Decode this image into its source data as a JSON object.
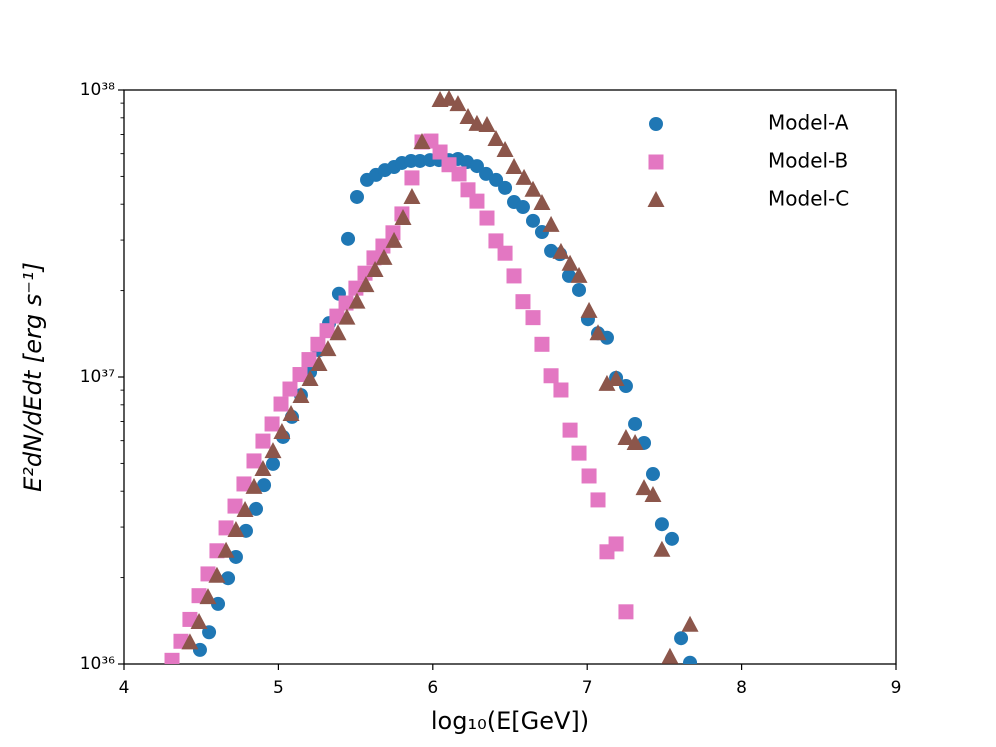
{
  "chart_data": {
    "type": "scatter",
    "xlabel": "log₁₀(E[GeV])",
    "ylabel": "E²dN/dEdt [erg s⁻¹]",
    "xlim": [
      4,
      9
    ],
    "xticks": [
      4,
      5,
      6,
      7,
      8,
      9
    ],
    "ylim": [
      1e+36,
      1e+38
    ],
    "log_y": true,
    "yticks": [
      {
        "value": 1e+36,
        "label": "10³⁶"
      },
      {
        "value": 1e+37,
        "label": "10³⁷"
      },
      {
        "value": 1e+38,
        "label": "10³⁸"
      }
    ],
    "yticks_minor": [
      2e+36,
      3e+36,
      4e+36,
      5e+36,
      6e+36,
      7e+36,
      8e+36,
      9e+36,
      2e+37,
      3e+37,
      4e+37,
      5e+37,
      6e+37,
      7e+37,
      8e+37,
      9e+37
    ],
    "legend": "upper right",
    "grid": false,
    "series": [
      {
        "name": "Model-A",
        "color": "#1f77b4",
        "marker": "circle",
        "x": [
          4.492,
          4.551,
          4.609,
          4.674,
          4.725,
          4.79,
          4.855,
          4.907,
          4.965,
          5.03,
          5.088,
          5.146,
          5.205,
          5.263,
          5.328,
          5.392,
          5.451,
          5.509,
          5.574,
          5.632,
          5.69,
          5.749,
          5.8,
          5.859,
          5.917,
          5.982,
          6.04,
          6.105,
          6.163,
          6.222,
          6.286,
          6.345,
          6.41,
          6.468,
          6.526,
          6.584,
          6.649,
          6.707,
          6.766,
          6.824,
          6.882,
          6.947,
          7.005,
          7.07,
          7.128,
          7.187,
          7.251,
          7.31,
          7.368,
          7.426,
          7.484,
          7.549,
          7.608,
          7.666
        ],
        "values": [
          1.12e+36,
          1.29e+36,
          1.62e+36,
          1.99e+36,
          2.36e+36,
          2.91e+36,
          3.47e+36,
          4.2e+36,
          4.98e+36,
          6.18e+36,
          7.26e+36,
          8.65e+36,
          1.04e+37,
          1.24e+37,
          1.54e+37,
          1.95e+37,
          3.03e+37,
          4.24e+37,
          4.86e+37,
          5.06e+37,
          5.26e+37,
          5.39e+37,
          5.57e+37,
          5.66e+37,
          5.66e+37,
          5.7e+37,
          5.7e+37,
          5.7e+37,
          5.75e+37,
          5.61e+37,
          5.43e+37,
          5.1e+37,
          4.86e+37,
          4.56e+37,
          4.07e+37,
          3.91e+37,
          3.5e+37,
          3.2e+37,
          2.75e+37,
          2.68e+37,
          2.25e+37,
          2.01e+37,
          1.59e+37,
          1.42e+37,
          1.37e+37,
          9.93e+36,
          9.3e+36,
          6.86e+36,
          5.89e+36,
          4.59e+36,
          3.07e+36,
          2.73e+36,
          1.23e+36,
          1.01e+36
        ]
      },
      {
        "name": "Model-B",
        "color": "#e377c2",
        "marker": "square",
        "x": [
          4.311,
          4.369,
          4.427,
          4.486,
          4.544,
          4.602,
          4.661,
          4.719,
          4.777,
          4.842,
          4.9,
          4.959,
          5.017,
          5.075,
          5.14,
          5.198,
          5.256,
          5.315,
          5.379,
          5.438,
          5.502,
          5.561,
          5.619,
          5.677,
          5.742,
          5.8,
          5.865,
          5.93,
          5.988,
          6.047,
          6.105,
          6.17,
          6.228,
          6.286,
          6.351,
          6.409,
          6.468,
          6.526,
          6.584,
          6.649,
          6.707,
          6.766,
          6.83,
          6.889,
          6.947,
          7.012,
          7.07,
          7.128,
          7.187,
          7.251
        ],
        "values": [
          1.03e+36,
          1.2e+36,
          1.43e+36,
          1.73e+36,
          2.06e+36,
          2.48e+36,
          2.98e+36,
          3.55e+36,
          4.24e+36,
          5.1e+36,
          5.98e+36,
          6.86e+36,
          8.05e+36,
          9.08e+36,
          1.02e+37,
          1.15e+37,
          1.3e+37,
          1.45e+37,
          1.63e+37,
          1.81e+37,
          2.04e+37,
          2.3e+37,
          2.6e+37,
          2.86e+37,
          3.18e+37,
          3.7e+37,
          4.94e+37,
          6.59e+37,
          6.64e+37,
          6.08e+37,
          5.49e+37,
          5.1e+37,
          4.49e+37,
          4.1e+37,
          3.58e+37,
          2.98e+37,
          2.7e+37,
          2.25e+37,
          1.83e+37,
          1.61e+37,
          1.3e+37,
          1.01e+37,
          9.01e+36,
          6.53e+36,
          5.43e+36,
          4.52e+36,
          3.73e+36,
          2.46e+36,
          2.62e+36,
          1.52e+36
        ]
      },
      {
        "name": "Model-C",
        "color": "#8c564b",
        "marker": "triangle",
        "x": [
          4.427,
          4.486,
          4.544,
          4.602,
          4.661,
          4.725,
          4.784,
          4.842,
          4.9,
          4.965,
          5.023,
          5.082,
          5.146,
          5.205,
          5.263,
          5.321,
          5.386,
          5.444,
          5.509,
          5.567,
          5.626,
          5.684,
          5.749,
          5.807,
          5.865,
          5.93,
          6.047,
          6.105,
          6.163,
          6.228,
          6.286,
          6.351,
          6.409,
          6.468,
          6.526,
          6.591,
          6.649,
          6.707,
          6.766,
          6.83,
          6.889,
          6.947,
          7.012,
          7.07,
          7.128,
          7.187,
          7.251,
          7.31,
          7.368,
          7.426,
          7.484,
          7.536,
          7.666
        ],
        "values": [
          1.19e+36,
          1.4e+36,
          1.71e+36,
          2.03e+36,
          2.48e+36,
          2.93e+36,
          3.44e+36,
          4.14e+36,
          4.78e+36,
          5.52e+36,
          6.43e+36,
          7.43e+36,
          8.59e+36,
          9.84e+36,
          1.11e+37,
          1.25e+37,
          1.42e+37,
          1.61e+37,
          1.83e+37,
          2.09e+37,
          2.36e+37,
          2.6e+37,
          2.98e+37,
          3.58e+37,
          4.24e+37,
          6.59e+37,
          9.23e+37,
          9.31e+37,
          8.93e+37,
          8.05e+37,
          7.62e+37,
          7.55e+37,
          6.75e+37,
          6.18e+37,
          5.39e+37,
          4.94e+37,
          4.49e+37,
          4.04e+37,
          3.39e+37,
          2.73e+37,
          2.48e+37,
          2.25e+37,
          1.7e+37,
          1.42e+37,
          9.46e+36,
          9.84e+36,
          6.13e+36,
          5.89e+36,
          4.1e+36,
          3.88e+36,
          2.5e+36,
          1.06e+36,
          1.37e+36
        ]
      }
    ]
  }
}
